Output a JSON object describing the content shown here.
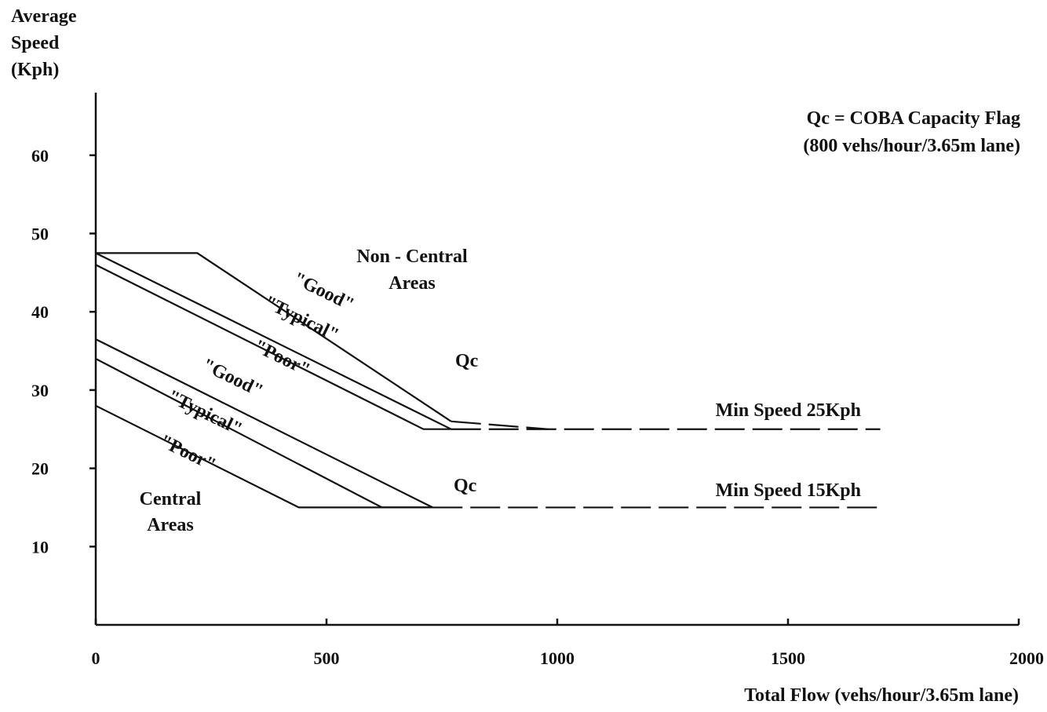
{
  "chart_data": {
    "type": "line",
    "ylabel_lines": [
      "Average",
      "Speed",
      "(Kph)"
    ],
    "xlabel": "Total Flow (vehs/hour/3.65m lane)",
    "xlim": [
      0,
      2000
    ],
    "ylim": [
      0,
      68
    ],
    "x_ticks": [
      0,
      500,
      1000,
      1500,
      2000
    ],
    "y_ticks": [
      10,
      20,
      30,
      40,
      50,
      60
    ],
    "grid": false,
    "series": [
      {
        "name": "\"Good\"",
        "group": "Non - Central Areas",
        "solid": [
          [
            0,
            47.5
          ],
          [
            220,
            47.5
          ],
          [
            770,
            26
          ]
        ],
        "dashed": [
          [
            770,
            26
          ],
          [
            980,
            25
          ]
        ]
      },
      {
        "name": "\"Typical\"",
        "group": "Non - Central Areas",
        "solid": [
          [
            0,
            47.5
          ],
          [
            770,
            25
          ]
        ],
        "dashed": []
      },
      {
        "name": "\"Poor\"",
        "group": "Non - Central Areas",
        "solid": [
          [
            0,
            46
          ],
          [
            710,
            25
          ],
          [
            770,
            25
          ]
        ],
        "dashed": []
      },
      {
        "name": "\"Good\"",
        "group": "Central Areas",
        "solid": [
          [
            0,
            36.5
          ],
          [
            730,
            15
          ]
        ],
        "dashed": []
      },
      {
        "name": "\"Typical\"",
        "group": "Central Areas",
        "solid": [
          [
            0,
            34
          ],
          [
            620,
            15
          ],
          [
            730,
            15
          ]
        ],
        "dashed": []
      },
      {
        "name": "\"Poor\"",
        "group": "Central Areas",
        "solid": [
          [
            0,
            28
          ],
          [
            440,
            15
          ],
          [
            730,
            15
          ]
        ],
        "dashed": []
      }
    ],
    "min_speed_lines": [
      {
        "label": "Min Speed 25Kph",
        "y": 25,
        "x_start": 770,
        "x_end": 1700
      },
      {
        "label": "Min Speed 15Kph",
        "y": 15,
        "x_start": 730,
        "x_end": 1700
      }
    ],
    "annotations": {
      "qc_definition_line1": "Qc = COBA Capacity Flag",
      "qc_definition_line2": "(800 vehs/hour/3.65m lane)",
      "qc_upper": "Qc",
      "qc_lower": "Qc",
      "non_central_line1": "Non - Central",
      "non_central_line2": "Areas",
      "central_line1": "Central",
      "central_line2": "Areas",
      "good_upper": "\"Good\"",
      "typical_upper": "\"Typical\"",
      "poor_upper": "\"Poor\"",
      "good_lower": "\"Good\"",
      "typical_lower": "\"Typical\"",
      "poor_lower": "\"Poor\""
    }
  }
}
